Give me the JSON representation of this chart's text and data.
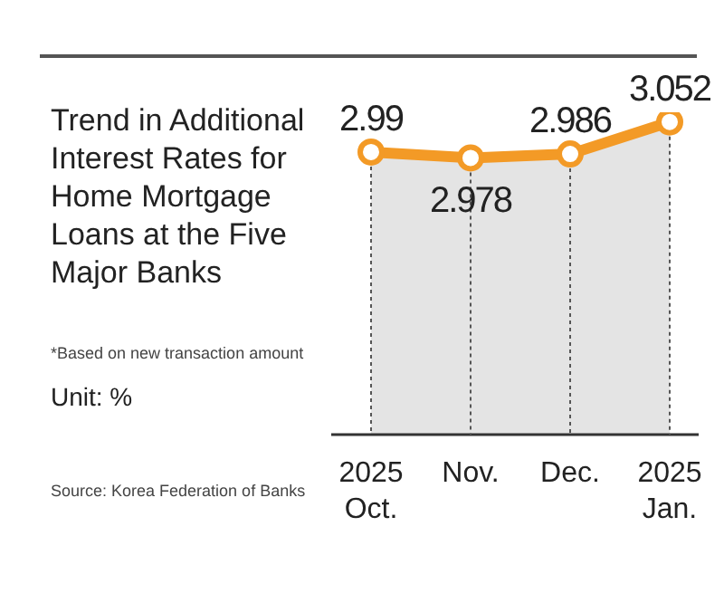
{
  "chart_data": {
    "type": "area",
    "title": "Trend in Additional Interest Rates for Home Mortgage Loans at the Five Major Banks",
    "annotations": [
      "*Based on new transaction amount",
      "Unit: %",
      "Source: Korea Federation of Banks"
    ],
    "categories": [
      "2025\nOct.",
      "Nov.",
      "Dec.",
      "2025\nJan."
    ],
    "series": [
      {
        "color": "#f39a26",
        "values": [
          2.99,
          2.978,
          2.986,
          3.052
        ]
      }
    ],
    "data_labels": true,
    "marker": "circle",
    "grid": false,
    "legend": false
  }
}
